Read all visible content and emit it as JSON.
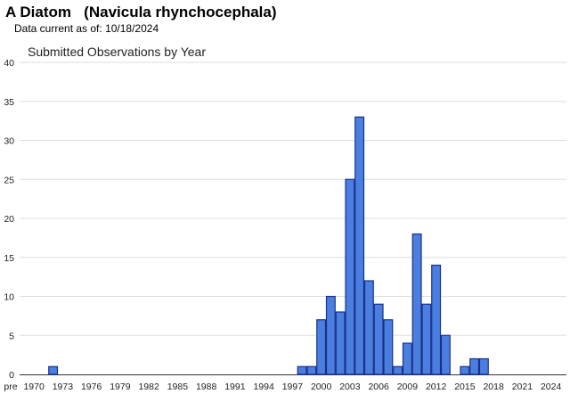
{
  "header": {
    "common_name": "A Diatom",
    "scientific_name": "(Navicula rhynchocephala)",
    "data_current_label": "Data current as of:",
    "data_current_date": "10/18/2024"
  },
  "colors": {
    "bar_fill": "#4a7fe0",
    "bar_stroke": "#1a2f8a",
    "grid": "#dddddd"
  },
  "chart_data": {
    "type": "bar",
    "title": "Submitted Observations by Year",
    "xlabel": "",
    "ylabel": "",
    "ylim": [
      0,
      40
    ],
    "yticks": [
      0,
      5,
      10,
      15,
      20,
      25,
      30,
      35,
      40
    ],
    "x_first_label": "pre",
    "xticks": [
      "1970",
      "1973",
      "1976",
      "1979",
      "1982",
      "1985",
      "1988",
      "1991",
      "1994",
      "1997",
      "2000",
      "2003",
      "2006",
      "2009",
      "2012",
      "2015",
      "2018",
      "2021",
      "2024"
    ],
    "grid": true,
    "bars": [
      {
        "year": 1972,
        "value": 1
      },
      {
        "year": 1998,
        "value": 1
      },
      {
        "year": 1999,
        "value": 1
      },
      {
        "year": 2000,
        "value": 7
      },
      {
        "year": 2001,
        "value": 10
      },
      {
        "year": 2002,
        "value": 8
      },
      {
        "year": 2003,
        "value": 25
      },
      {
        "year": 2004,
        "value": 33
      },
      {
        "year": 2005,
        "value": 12
      },
      {
        "year": 2006,
        "value": 9
      },
      {
        "year": 2007,
        "value": 7
      },
      {
        "year": 2008,
        "value": 1
      },
      {
        "year": 2009,
        "value": 4
      },
      {
        "year": 2010,
        "value": 18
      },
      {
        "year": 2011,
        "value": 9
      },
      {
        "year": 2012,
        "value": 14
      },
      {
        "year": 2013,
        "value": 5
      },
      {
        "year": 2015,
        "value": 1
      },
      {
        "year": 2016,
        "value": 2
      },
      {
        "year": 2017,
        "value": 2
      }
    ]
  }
}
